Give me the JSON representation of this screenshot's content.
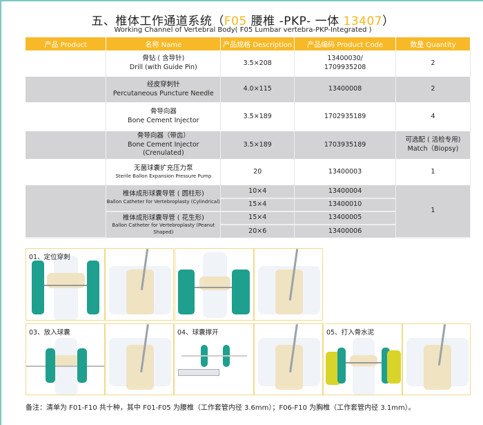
{
  "title": {
    "prefix": "五、椎体工作通道系统（",
    "code1": "F05",
    "middle": " 腰椎 -PKP- 一体 ",
    "code2": "13407",
    "suffix": "）"
  },
  "subtitle": "Working Channel of Vertebral Body( F05 Lumbar vertebra-PKP-Integrated )",
  "accent": "#f7b928",
  "table": {
    "headers": [
      "产品 Product",
      "名称 Name",
      "产品规格 Description",
      "产品编码 Product Code",
      "数量 Quantity"
    ],
    "rows": [
      {
        "name_cn": "骨钻 ( 含导针)",
        "name_en": "Drill (with Guide Pin)",
        "spec": "3.5×208",
        "code": "13400030/",
        "code2": "1709935208",
        "qty": "2"
      },
      {
        "name_cn": "经皮穿刺针",
        "name_en": "Percutaneous Puncture Needle",
        "spec": "4.0×115",
        "code": "13400008",
        "qty": "2"
      },
      {
        "name_cn": "骨导向器",
        "name_en": "Bone Cement Injector",
        "spec": "3.5×189",
        "code": "1702935189",
        "qty": "4"
      },
      {
        "name_cn": "骨导向器（带齿）",
        "name_en": "Bone Cement Injector (Crenulated)",
        "spec": "3.5×189",
        "code": "1703935189",
        "qty": "可选配 ( 活检专用)",
        "qty2": "Match（Biopsy)"
      },
      {
        "name_cn": "无菌球囊扩充压力泵",
        "name_en": "Sterile Ballon Expansion Pressure Pump",
        "spec": "20",
        "code": "13400003",
        "qty": "1"
      }
    ],
    "catheters": [
      {
        "name_cn": "椎体成形球囊导管 ( 圆柱形)",
        "name_en": "Ballon Catheter for Vertebroplasty (Cylindrical)",
        "items": [
          {
            "spec": "10×4",
            "code": "13400004"
          },
          {
            "spec": "15×4",
            "code": "13400010"
          }
        ]
      },
      {
        "name_cn": "椎体成形球囊导管 ( 花生形)",
        "name_en": "Ballon Catheter for Vertebroplasty (Peanut Shaped)",
        "items": [
          {
            "spec": "15×4",
            "code": "13400005"
          },
          {
            "spec": "20×6",
            "code": "13400006"
          }
        ]
      }
    ],
    "catheter_qty": "1"
  },
  "steps": [
    "01、定位穿刺",
    "03、放入球囊",
    "04、球囊撑开",
    "05、打入骨水泥"
  ],
  "note": "备注：清单为 F01-F10 共十种，其中 F01-F05 为腰椎（工作套管内径 3.6mm）；F06-F10 为胸椎（工作套管内径 3.1mm）。"
}
